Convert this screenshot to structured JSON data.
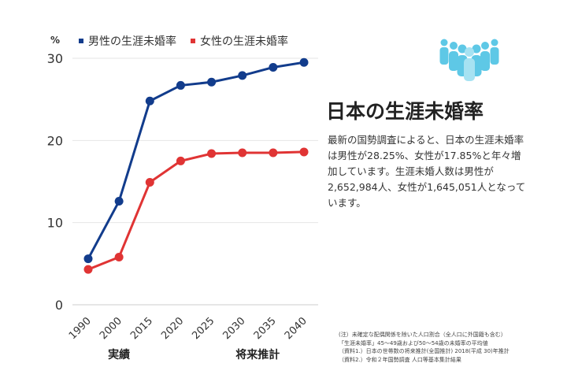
{
  "unit": "%",
  "title": "日本の生涯未婚率",
  "description": "最新の国勢調査によると、日本の生涯未婚率は男性が28.25%、女性が17.85%と年々増加しています。生涯未婚人数は男性が2,652,984人、女性が1,645,051人となっています。",
  "notes": [
    "(注）未確定な配偶関係を除いた人口割合（全人口に外国籍も含む）",
    "「生涯未婚率」45〜49歳および50〜54歳の未婚率の平均値",
    "（資料1.）日本の世帯数の将来推計(全国推計) 2018(平成 30)年推計",
    "（資料2.）令和２年国勢調査 人口等基本集計結果"
  ],
  "icon": "people-group-icon",
  "colors": {
    "male": "#123c8c",
    "female": "#e03434",
    "icon": "#5ec8e6",
    "grid": "#e6e6e6"
  },
  "chart_data": {
    "type": "line",
    "categories": [
      "1990",
      "2000",
      "2015",
      "2020",
      "2025",
      "2030",
      "2035",
      "2040"
    ],
    "series": [
      {
        "name": "男性の生涯未婚率",
        "values": [
          5.6,
          12.6,
          24.8,
          26.7,
          27.1,
          27.9,
          28.9,
          29.5
        ]
      },
      {
        "name": "女性の生涯未婚率",
        "values": [
          4.3,
          5.8,
          14.9,
          17.5,
          18.4,
          18.5,
          18.5,
          18.6
        ]
      }
    ],
    "yticks": [
      0,
      10,
      20,
      30
    ],
    "ylim": [
      0,
      30
    ],
    "group_labels": [
      {
        "label": "実績",
        "from": "1990",
        "to": "2015"
      },
      {
        "label": "将来推計",
        "from": "2025",
        "to": "2040"
      }
    ],
    "legend": "top"
  }
}
